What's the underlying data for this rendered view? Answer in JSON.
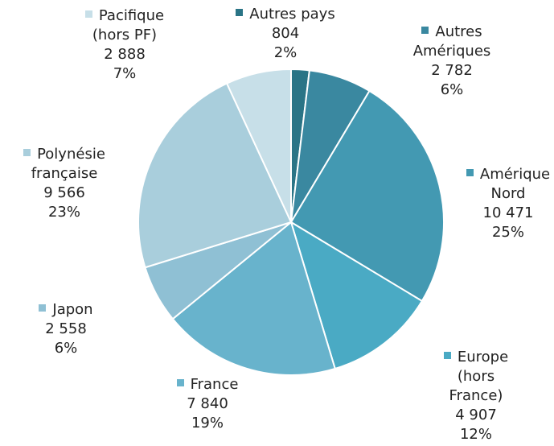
{
  "chart_data": {
    "type": "pie",
    "categories": [
      "Autres pays",
      "Autres Amériques",
      "Amérique Nord",
      "Europe (hors France)",
      "France",
      "Japon",
      "Polynésie française",
      "Pacifique (hors PF)"
    ],
    "values": [
      804,
      2782,
      10471,
      4907,
      7840,
      2558,
      9566,
      2888
    ],
    "value_labels": [
      "804",
      "2 782",
      "10 471",
      "4 907",
      "7 840",
      "2 558",
      "9 566",
      "2 888"
    ],
    "percentages": [
      2,
      6,
      25,
      12,
      19,
      6,
      23,
      7
    ],
    "percentage_labels": [
      "2%",
      "6%",
      "25%",
      "12%",
      "19%",
      "6%",
      "23%",
      "7%"
    ],
    "colors": [
      "#2a7486",
      "#3a88a0",
      "#4399b2",
      "#4aaac4",
      "#68b3cc",
      "#8fc0d4",
      "#a9cedc",
      "#c7dfe8"
    ]
  }
}
